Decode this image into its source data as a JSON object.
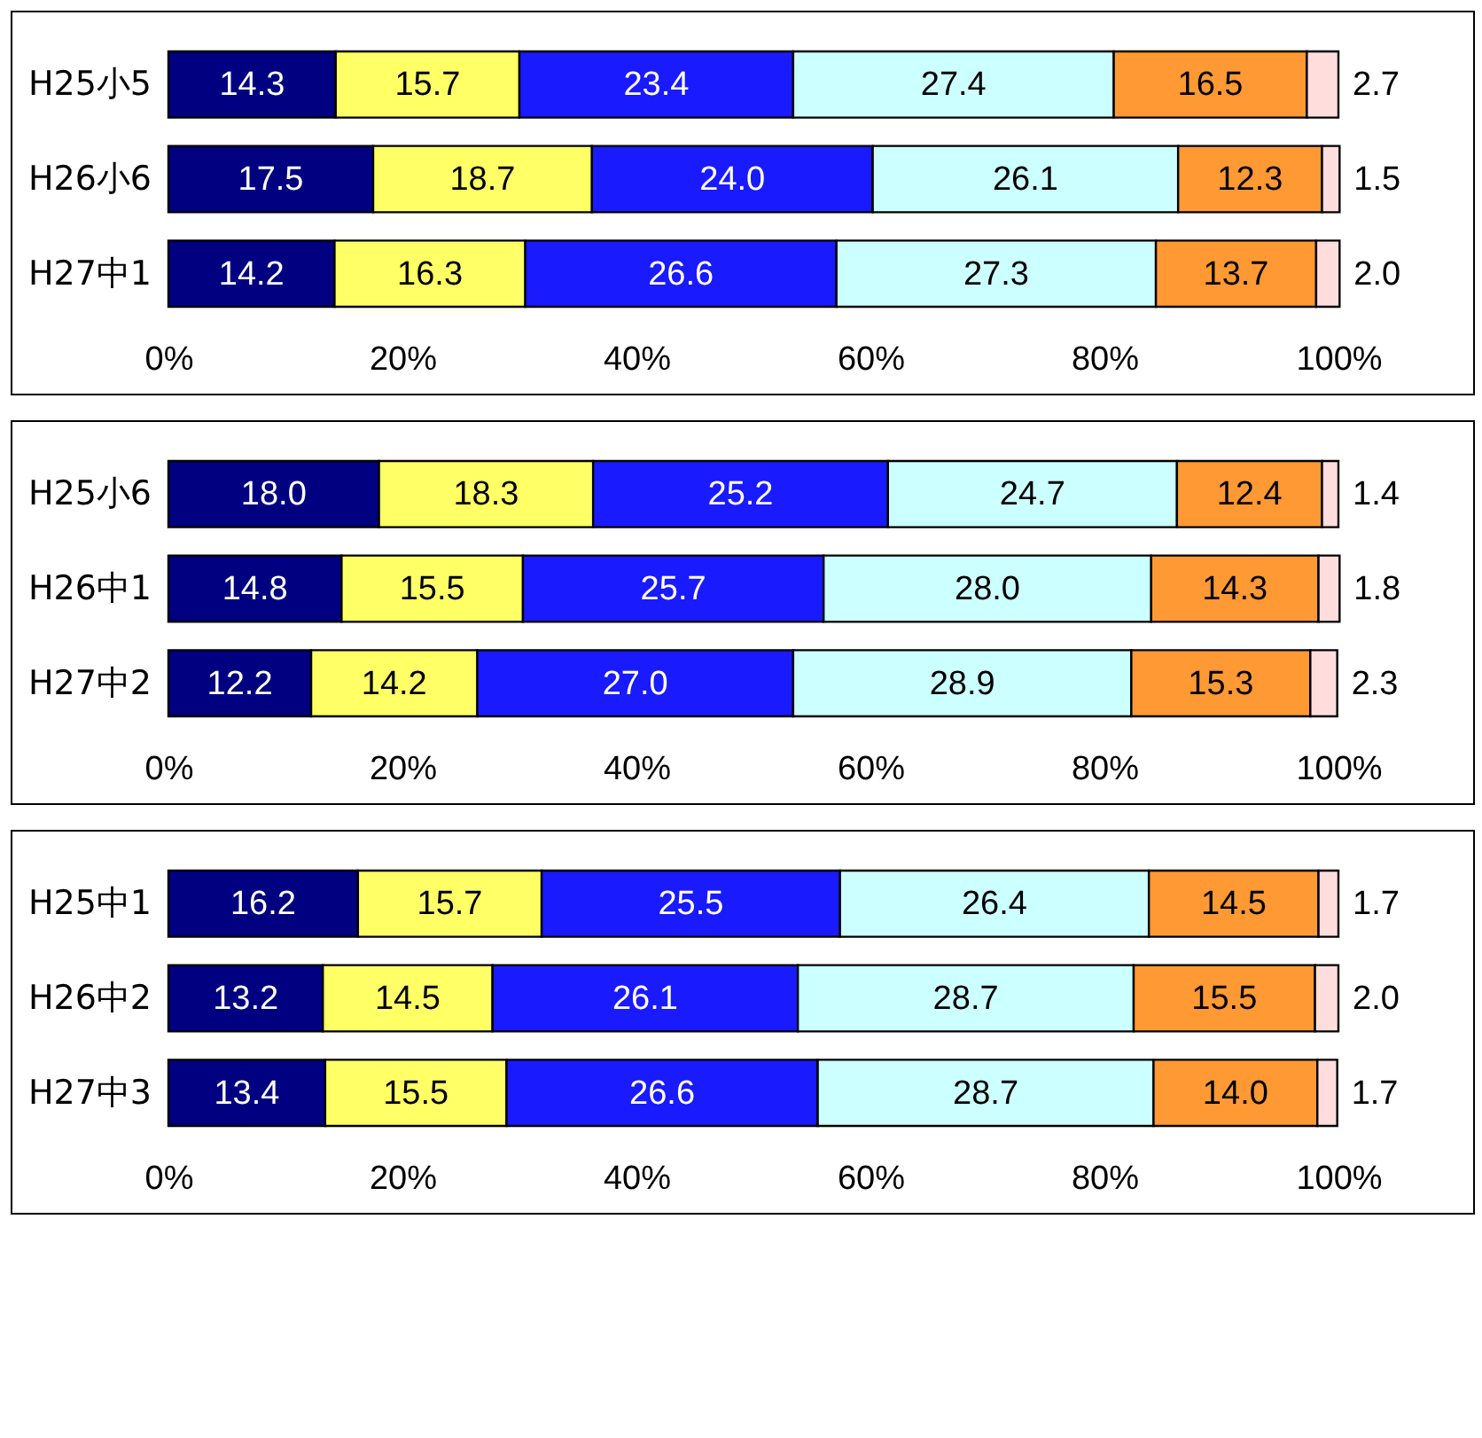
{
  "chart_data": [
    {
      "type": "bar",
      "orientation": "horizontal",
      "stacked": true,
      "categories": [
        "H25小5",
        "H26小6",
        "H27中1"
      ],
      "xlim": [
        0,
        100
      ],
      "xticks": [
        {
          "value": 0,
          "label": "0%"
        },
        {
          "value": 20,
          "label": "20%"
        },
        {
          "value": 40,
          "label": "40%"
        },
        {
          "value": 60,
          "label": "60%"
        },
        {
          "value": 80,
          "label": "80%"
        },
        {
          "value": 100,
          "label": "100%"
        }
      ],
      "grid": false,
      "series": [
        {
          "color": "#000080",
          "values": [
            14.3,
            17.5,
            14.2
          ],
          "value_labels": [
            "14.3",
            "17.5",
            "14.2"
          ]
        },
        {
          "color": "#ffff66",
          "values": [
            15.7,
            18.7,
            16.3
          ],
          "value_labels": [
            "15.7",
            "18.7",
            "16.3"
          ]
        },
        {
          "color": "#1a1aff",
          "values": [
            23.4,
            24.0,
            26.6
          ],
          "value_labels": [
            "23.4",
            "24.0",
            "26.6"
          ]
        },
        {
          "color": "#ccffff",
          "values": [
            27.4,
            26.1,
            27.3
          ],
          "value_labels": [
            "27.4",
            "26.1",
            "27.3"
          ]
        },
        {
          "color": "#ff9933",
          "values": [
            16.5,
            12.3,
            13.7
          ],
          "value_labels": [
            "16.5",
            "12.3",
            "13.7"
          ]
        },
        {
          "color": "#ffdddd",
          "values": [
            2.7,
            1.5,
            2.0
          ],
          "value_labels": [
            "2.7",
            "1.5",
            "2.0"
          ]
        }
      ]
    },
    {
      "type": "bar",
      "orientation": "horizontal",
      "stacked": true,
      "categories": [
        "H25小6",
        "H26中1",
        "H27中2"
      ],
      "xlim": [
        0,
        100
      ],
      "xticks": [
        {
          "value": 0,
          "label": "0%"
        },
        {
          "value": 20,
          "label": "20%"
        },
        {
          "value": 40,
          "label": "40%"
        },
        {
          "value": 60,
          "label": "60%"
        },
        {
          "value": 80,
          "label": "80%"
        },
        {
          "value": 100,
          "label": "100%"
        }
      ],
      "grid": false,
      "series": [
        {
          "color": "#000080",
          "values": [
            18.0,
            14.8,
            12.2
          ],
          "value_labels": [
            "18.0",
            "14.8",
            "12.2"
          ]
        },
        {
          "color": "#ffff66",
          "values": [
            18.3,
            15.5,
            14.2
          ],
          "value_labels": [
            "18.3",
            "15.5",
            "14.2"
          ]
        },
        {
          "color": "#1a1aff",
          "values": [
            25.2,
            25.7,
            27.0
          ],
          "value_labels": [
            "25.2",
            "25.7",
            "27.0"
          ]
        },
        {
          "color": "#ccffff",
          "values": [
            24.7,
            28.0,
            28.9
          ],
          "value_labels": [
            "24.7",
            "28.0",
            "28.9"
          ]
        },
        {
          "color": "#ff9933",
          "values": [
            12.4,
            14.3,
            15.3
          ],
          "value_labels": [
            "12.4",
            "14.3",
            "15.3"
          ]
        },
        {
          "color": "#ffdddd",
          "values": [
            1.4,
            1.8,
            2.3
          ],
          "value_labels": [
            "1.4",
            "1.8",
            "2.3"
          ]
        }
      ]
    },
    {
      "type": "bar",
      "orientation": "horizontal",
      "stacked": true,
      "categories": [
        "H25中1",
        "H26中2",
        "H27中3"
      ],
      "xlim": [
        0,
        100
      ],
      "xticks": [
        {
          "value": 0,
          "label": "0%"
        },
        {
          "value": 20,
          "label": "20%"
        },
        {
          "value": 40,
          "label": "40%"
        },
        {
          "value": 60,
          "label": "60%"
        },
        {
          "value": 80,
          "label": "80%"
        },
        {
          "value": 100,
          "label": "100%"
        }
      ],
      "grid": false,
      "series": [
        {
          "color": "#000080",
          "values": [
            16.2,
            13.2,
            13.4
          ],
          "value_labels": [
            "16.2",
            "13.2",
            "13.4"
          ]
        },
        {
          "color": "#ffff66",
          "values": [
            15.7,
            14.5,
            15.5
          ],
          "value_labels": [
            "15.7",
            "14.5",
            "15.5"
          ]
        },
        {
          "color": "#1a1aff",
          "values": [
            25.5,
            26.1,
            26.6
          ],
          "value_labels": [
            "25.5",
            "26.1",
            "26.6"
          ]
        },
        {
          "color": "#ccffff",
          "values": [
            26.4,
            28.7,
            28.7
          ],
          "value_labels": [
            "26.4",
            "28.7",
            "28.7"
          ]
        },
        {
          "color": "#ff9933",
          "values": [
            14.5,
            15.5,
            14.0
          ],
          "value_labels": [
            "14.5",
            "15.5",
            "14.0"
          ]
        },
        {
          "color": "#ffdddd",
          "values": [
            1.7,
            2.0,
            1.7
          ],
          "value_labels": [
            "1.7",
            "2.0",
            "1.7"
          ]
        }
      ]
    }
  ]
}
